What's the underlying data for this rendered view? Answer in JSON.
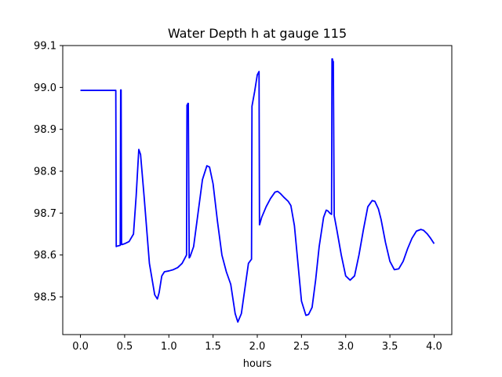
{
  "chart_data": {
    "type": "line",
    "title": "Water Depth h at gauge 115",
    "xlabel": "hours",
    "ylabel": "",
    "xlim": [
      -0.2,
      4.2
    ],
    "ylim": [
      98.41,
      99.1
    ],
    "xticks": [
      0.0,
      0.5,
      1.0,
      1.5,
      2.0,
      2.5,
      3.0,
      3.5,
      4.0
    ],
    "xtick_labels": [
      "0.0",
      "0.5",
      "1.0",
      "1.5",
      "2.0",
      "2.5",
      "3.0",
      "3.5",
      "4.0"
    ],
    "yticks": [
      98.5,
      98.6,
      98.7,
      98.8,
      98.9,
      99.0,
      99.1
    ],
    "ytick_labels": [
      "98.5",
      "98.6",
      "98.7",
      "98.8",
      "98.9",
      "99.0",
      "99.1"
    ],
    "grid": false,
    "series": [
      {
        "color": "#0000ff",
        "x": [
          0.0,
          0.1,
          0.2,
          0.3,
          0.4,
          0.405,
          0.41,
          0.45,
          0.455,
          0.46,
          0.465,
          0.47,
          0.5,
          0.55,
          0.6,
          0.63,
          0.66,
          0.68,
          0.72,
          0.78,
          0.84,
          0.87,
          0.89,
          0.92,
          0.95,
          1.0,
          1.05,
          1.1,
          1.15,
          1.2,
          1.205,
          1.21,
          1.215,
          1.22,
          1.23,
          1.24,
          1.28,
          1.33,
          1.38,
          1.43,
          1.46,
          1.5,
          1.55,
          1.6,
          1.65,
          1.7,
          1.75,
          1.78,
          1.82,
          1.86,
          1.9,
          1.935,
          1.94,
          1.97,
          2.0,
          2.02,
          2.025,
          2.03,
          2.05,
          2.08,
          2.1,
          2.15,
          2.2,
          2.23,
          2.26,
          2.3,
          2.35,
          2.38,
          2.42,
          2.46,
          2.5,
          2.55,
          2.58,
          2.62,
          2.66,
          2.7,
          2.75,
          2.78,
          2.8,
          2.82,
          2.84,
          2.845,
          2.85,
          2.855,
          2.86,
          2.87,
          2.9,
          2.95,
          3.0,
          3.05,
          3.1,
          3.15,
          3.2,
          3.25,
          3.3,
          3.33,
          3.37,
          3.4,
          3.45,
          3.5,
          3.55,
          3.6,
          3.65,
          3.7,
          3.75,
          3.8,
          3.85,
          3.88,
          3.92,
          3.96,
          4.0
        ],
        "y": [
          98.993,
          98.993,
          98.993,
          98.993,
          98.993,
          98.62,
          98.621,
          98.623,
          98.994,
          98.994,
          98.625,
          98.625,
          98.627,
          98.632,
          98.65,
          98.74,
          98.852,
          98.84,
          98.74,
          98.58,
          98.505,
          98.495,
          98.51,
          98.55,
          98.56,
          98.562,
          98.565,
          98.57,
          98.58,
          98.6,
          98.958,
          98.958,
          98.962,
          98.962,
          98.593,
          98.596,
          98.62,
          98.7,
          98.78,
          98.813,
          98.81,
          98.77,
          98.68,
          98.6,
          98.56,
          98.53,
          98.46,
          98.44,
          98.46,
          98.52,
          98.58,
          98.59,
          98.955,
          98.99,
          99.03,
          99.038,
          98.672,
          98.675,
          98.69,
          98.705,
          98.715,
          98.735,
          98.75,
          98.752,
          98.747,
          98.738,
          98.728,
          98.718,
          98.67,
          98.58,
          98.49,
          98.456,
          98.458,
          98.475,
          98.54,
          98.62,
          98.69,
          98.707,
          98.705,
          98.7,
          98.697,
          99.068,
          99.068,
          99.062,
          99.062,
          98.694,
          98.66,
          98.6,
          98.55,
          98.54,
          98.55,
          98.6,
          98.66,
          98.715,
          98.73,
          98.728,
          98.71,
          98.685,
          98.63,
          98.585,
          98.565,
          98.567,
          98.585,
          98.615,
          98.64,
          98.657,
          98.661,
          98.659,
          98.651,
          98.64,
          98.627
        ]
      }
    ]
  }
}
